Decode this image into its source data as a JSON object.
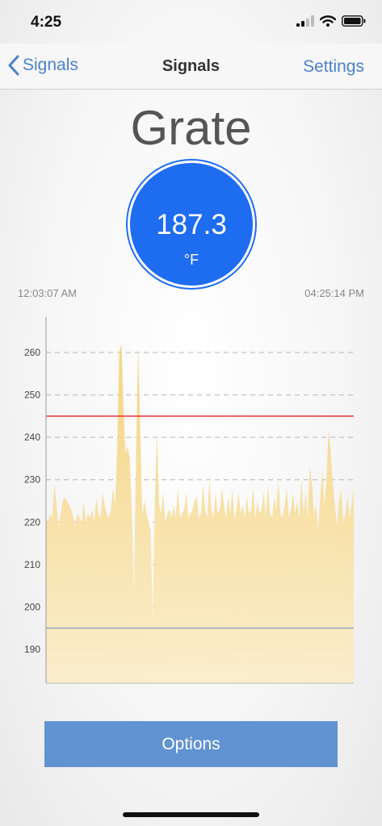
{
  "status_bar": {
    "time": "4:25",
    "icons": [
      "cellular-signal-icon",
      "wifi-icon",
      "battery-icon"
    ]
  },
  "nav": {
    "back_label": "Signals",
    "title": "Signals",
    "settings_label": "Settings"
  },
  "signal": {
    "name": "Grate",
    "value": "187.3",
    "unit": "°F",
    "circle_color": "#1e6cf0"
  },
  "time_range": {
    "start": "12:03:07 AM",
    "end": "04:25:14 PM"
  },
  "chart_data": {
    "type": "area",
    "title": "",
    "xlabel": "",
    "ylabel": "",
    "ylim": [
      182,
      268
    ],
    "grid": true,
    "grid_style": "dashed",
    "y_ticks": [
      190,
      200,
      210,
      220,
      230,
      240,
      250,
      260
    ],
    "thresholds": [
      {
        "name": "high",
        "value": 245,
        "color": "#e53030"
      },
      {
        "name": "low",
        "value": 195,
        "color": "#9aa8bf"
      }
    ],
    "series": [
      {
        "color": "#f4d27a",
        "values": [
          221,
          220,
          222,
          221,
          229,
          224,
          219,
          222,
          225,
          226,
          225,
          224,
          223,
          221,
          219,
          222,
          221,
          220,
          225,
          220,
          222,
          221,
          223,
          220,
          226,
          222,
          221,
          227,
          224,
          222,
          221,
          223,
          228,
          224,
          238,
          260,
          262,
          247,
          236,
          238,
          235,
          222,
          204,
          235,
          261,
          242,
          222,
          225,
          222,
          220,
          218,
          197,
          225,
          241,
          224,
          222,
          227,
          220,
          222,
          223,
          221,
          224,
          221,
          228,
          221,
          222,
          223,
          227,
          221,
          222,
          223,
          225,
          226,
          221,
          222,
          229,
          223,
          221,
          230,
          223,
          221,
          227,
          222,
          223,
          228,
          224,
          221,
          226,
          222,
          228,
          221,
          223,
          227,
          222,
          224,
          221,
          226,
          222,
          223,
          228,
          221,
          225,
          222,
          223,
          227,
          221,
          229,
          222,
          221,
          226,
          223,
          230,
          222,
          221,
          224,
          228,
          221,
          223,
          227,
          222,
          225,
          221,
          230,
          222,
          227,
          221,
          233,
          229,
          222,
          224,
          218,
          226,
          232,
          224,
          230,
          242,
          236,
          229,
          224,
          219,
          225,
          228,
          220,
          222,
          226,
          221,
          224,
          228
        ]
      }
    ]
  },
  "options_button": {
    "label": "Options"
  }
}
